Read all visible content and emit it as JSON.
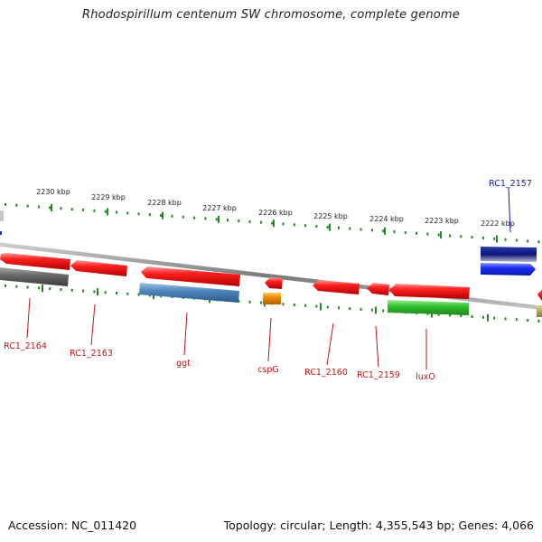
{
  "title": "Rhodospirillum centenum SW chromosome, complete genome",
  "footer": {
    "accession": "Accession: NC_011420",
    "summary": "Topology: circular; Length: 4,355,543 bp; Genes: 4,066"
  },
  "ticks": [
    "2230 kbp",
    "2229 kbp",
    "2228 kbp",
    "2227 kbp",
    "2226 kbp",
    "2225 kbp",
    "2224 kbp",
    "2223 kbp",
    "2222 kbp"
  ],
  "gene_labels": [
    "RC1_2164",
    "RC1_2163",
    "ggt",
    "cspG",
    "RC1_2160",
    "RC1_2159",
    "luxO",
    "RC1_2157"
  ],
  "colors": {
    "gene_red": "#f01818",
    "gene_grey": "#6a6a6a",
    "gene_steelblue": "#4f86be",
    "gene_orange": "#f08c00",
    "gene_green": "#34c234",
    "gene_navy": "#0a1580",
    "gene_blue": "#1c2ef5",
    "gene_olive": "#b0a860",
    "tick_green": "#1e8a1e",
    "label_red": "#cc1111",
    "label_blue": "#1020aa",
    "backbone": "#808080"
  }
}
